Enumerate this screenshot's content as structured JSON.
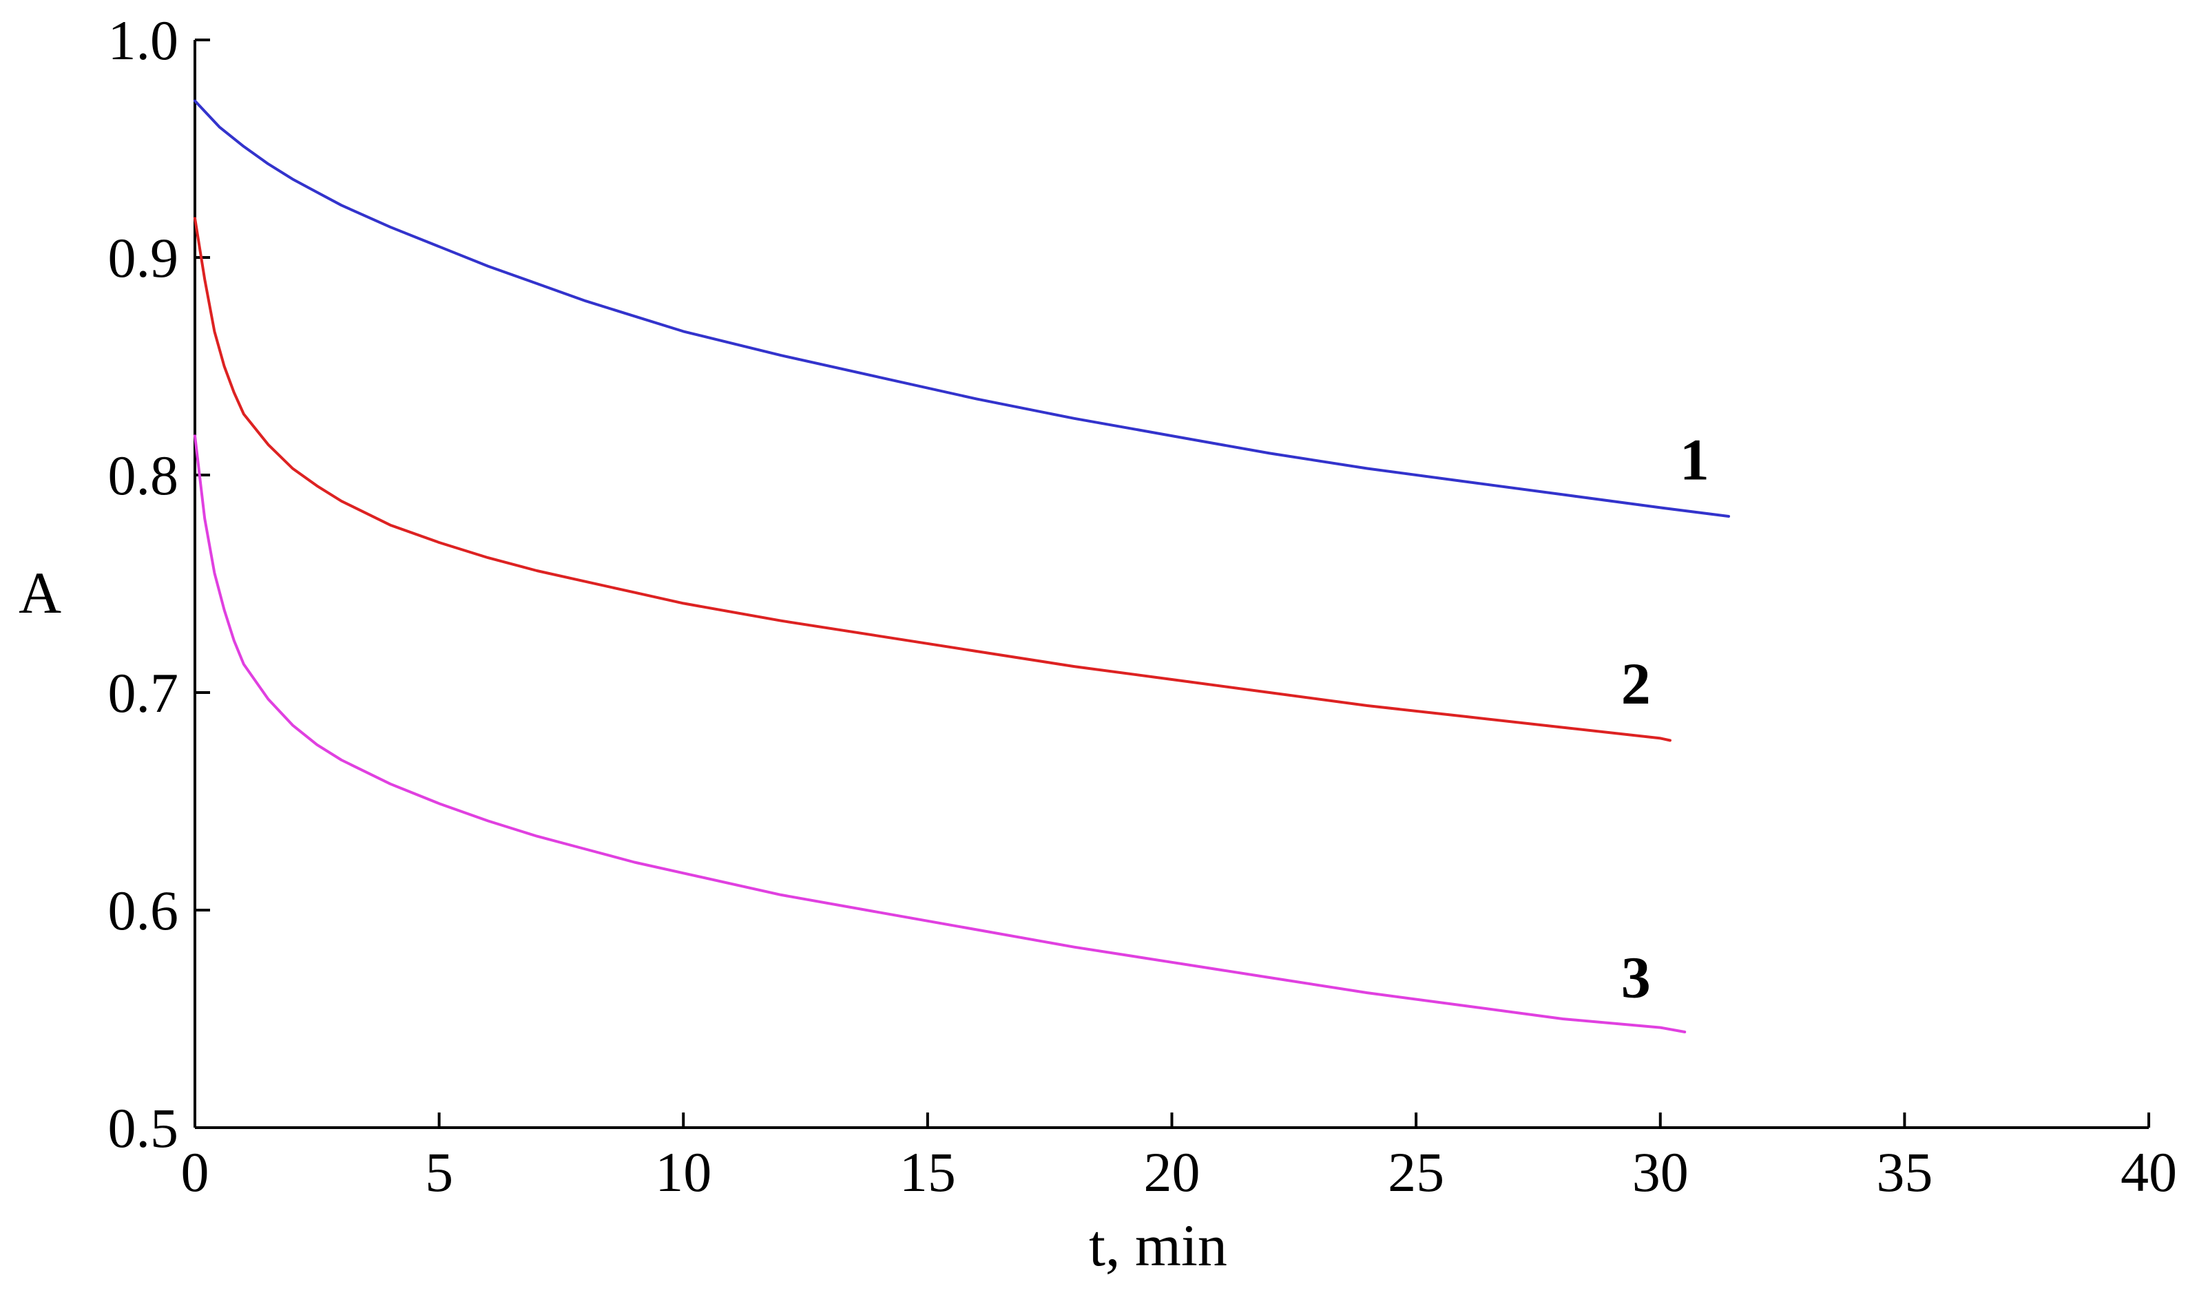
{
  "chart_data": {
    "type": "line",
    "title": "",
    "xlabel": "t, min",
    "ylabel": "A",
    "xlim": [
      0,
      40
    ],
    "ylim": [
      0.5,
      1.0
    ],
    "xticks": [
      0,
      5,
      10,
      15,
      20,
      25,
      30,
      35,
      40
    ],
    "yticks": [
      0.5,
      0.6,
      0.7,
      0.8,
      0.9,
      1.0
    ],
    "xtick_labels": [
      "0",
      "5",
      "10",
      "15",
      "20",
      "25",
      "30",
      "35",
      "40"
    ],
    "ytick_labels": [
      "0.5",
      "0.6",
      "0.7",
      "0.8",
      "0.9",
      "1.0"
    ],
    "grid": false,
    "legend": "none (curves labeled inline)",
    "series": [
      {
        "name": "1",
        "color": "#3333cc",
        "x": [
          0,
          0.25,
          0.5,
          1,
          1.5,
          2,
          2.5,
          3,
          4,
          5,
          6,
          7,
          8,
          9,
          10,
          12,
          14,
          16,
          18,
          20,
          22,
          24,
          26,
          28,
          30,
          31.4
        ],
        "y": [
          0.972,
          0.966,
          0.96,
          0.951,
          0.943,
          0.936,
          0.93,
          0.924,
          0.914,
          0.905,
          0.896,
          0.888,
          0.88,
          0.873,
          0.866,
          0.855,
          0.845,
          0.835,
          0.826,
          0.818,
          0.81,
          0.803,
          0.797,
          0.791,
          0.785,
          0.781
        ]
      },
      {
        "name": "2",
        "color": "#dd2222",
        "x": [
          0,
          0.2,
          0.4,
          0.6,
          0.8,
          1,
          1.5,
          2,
          2.5,
          3,
          4,
          5,
          6,
          7,
          8,
          9,
          10,
          12,
          14,
          16,
          18,
          20,
          22,
          24,
          26,
          28,
          30,
          30.2
        ],
        "y": [
          0.918,
          0.89,
          0.866,
          0.85,
          0.838,
          0.828,
          0.814,
          0.803,
          0.795,
          0.788,
          0.777,
          0.769,
          0.762,
          0.756,
          0.751,
          0.746,
          0.741,
          0.733,
          0.726,
          0.719,
          0.712,
          0.706,
          0.7,
          0.694,
          0.689,
          0.684,
          0.679,
          0.678
        ]
      },
      {
        "name": "3",
        "color": "#e040e0",
        "x": [
          0,
          0.2,
          0.4,
          0.6,
          0.8,
          1,
          1.5,
          2,
          2.5,
          3,
          4,
          5,
          6,
          7,
          8,
          9,
          10,
          12,
          14,
          16,
          18,
          20,
          22,
          24,
          26,
          28,
          30,
          30.5
        ],
        "y": [
          0.818,
          0.78,
          0.755,
          0.738,
          0.724,
          0.713,
          0.697,
          0.685,
          0.676,
          0.669,
          0.658,
          0.649,
          0.641,
          0.634,
          0.628,
          0.622,
          0.617,
          0.607,
          0.599,
          0.591,
          0.583,
          0.576,
          0.569,
          0.562,
          0.556,
          0.55,
          0.546,
          0.544
        ]
      }
    ],
    "annotations": [
      {
        "text": "1",
        "x": 30.7,
        "y": 0.798
      },
      {
        "text": "2",
        "x": 29.5,
        "y": 0.695
      },
      {
        "text": "3",
        "x": 29.5,
        "y": 0.56
      }
    ]
  }
}
